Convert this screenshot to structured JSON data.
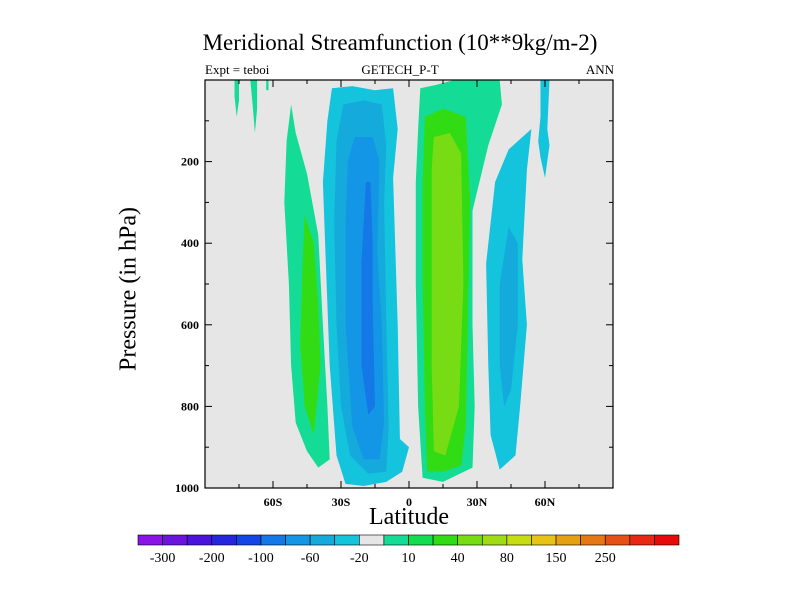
{
  "chart_data": {
    "type": "heatmap",
    "title": "Meridional Streamfunction (10**9kg/m-2)",
    "left_string": "Expt = teboi",
    "center_string": "GETECH_P-T",
    "right_string": "ANN",
    "xlabel": "Latitude",
    "ylabel": "Pressure (in hPa)",
    "xlim": [
      -90,
      90
    ],
    "ylim": [
      1000,
      0
    ],
    "x_ticks": [
      {
        "value": -60,
        "label": "60S"
      },
      {
        "value": -30,
        "label": "30S"
      },
      {
        "value": 0,
        "label": "0"
      },
      {
        "value": 30,
        "label": "30N"
      },
      {
        "value": 60,
        "label": "60N"
      }
    ],
    "y_ticks": [
      {
        "value": 200,
        "label": "200"
      },
      {
        "value": 400,
        "label": "400"
      },
      {
        "value": 600,
        "label": "600"
      },
      {
        "value": 800,
        "label": "800"
      },
      {
        "value": 1000,
        "label": "1000"
      }
    ],
    "background_color": "#e6e6e6",
    "colorbar": {
      "levels": [
        "-300",
        "-200",
        "-100",
        "-60",
        "-20",
        "10",
        "40",
        "80",
        "150",
        "250"
      ],
      "colors": [
        "#8a14e6",
        "#6a14dc",
        "#4a14dc",
        "#2626dc",
        "#1446e6",
        "#1478e6",
        "#1496e6",
        "#14aadc",
        "#14c3dc",
        "#e6e6e6",
        "#14dc96",
        "#14dc50",
        "#32dc14",
        "#78dc14",
        "#a0dc14",
        "#c8dc14",
        "#e6c314",
        "#e6a014",
        "#e67814",
        "#e65014",
        "#e62814",
        "#e60a0a"
      ]
    },
    "regions": [
      {
        "name": "sh-outer-cell",
        "value": 20,
        "color": "#14dc96",
        "points": [
          [
            -52,
            60
          ],
          [
            -50,
            130
          ],
          [
            -45,
            230
          ],
          [
            -40,
            380
          ],
          [
            -38,
            600
          ],
          [
            -36,
            800
          ],
          [
            -35,
            930
          ],
          [
            -40,
            950
          ],
          [
            -45,
            910
          ],
          [
            -50,
            840
          ],
          [
            -52,
            700
          ],
          [
            -53,
            500
          ],
          [
            -55,
            300
          ],
          [
            -54,
            150
          ]
        ]
      },
      {
        "name": "sh-outer-core",
        "value": 50,
        "color": "#32dc14",
        "points": [
          [
            -46,
            330
          ],
          [
            -42,
            400
          ],
          [
            -40,
            550
          ],
          [
            -39,
            700
          ],
          [
            -42,
            870
          ],
          [
            -46,
            800
          ],
          [
            -48,
            650
          ],
          [
            -47,
            450
          ]
        ]
      },
      {
        "name": "sh-hadley-outer",
        "value": -20,
        "color": "#14c3dc",
        "points": [
          [
            -34,
            20
          ],
          [
            -25,
            15
          ],
          [
            -15,
            25
          ],
          [
            -7,
            20
          ],
          [
            -5,
            120
          ],
          [
            -7,
            240
          ],
          [
            -5,
            600
          ],
          [
            -4,
            880
          ],
          [
            0,
            900
          ],
          [
            -3,
            960
          ],
          [
            -10,
            985
          ],
          [
            -20,
            995
          ],
          [
            -28,
            990
          ],
          [
            -32,
            920
          ],
          [
            -35,
            700
          ],
          [
            -37,
            400
          ],
          [
            -38,
            250
          ],
          [
            -36,
            100
          ]
        ]
      },
      {
        "name": "sh-hadley-mid",
        "value": -60,
        "color": "#14aadc",
        "points": [
          [
            -29,
            60
          ],
          [
            -20,
            50
          ],
          [
            -12,
            60
          ],
          [
            -10,
            160
          ],
          [
            -11,
            300
          ],
          [
            -10,
            600
          ],
          [
            -9,
            850
          ],
          [
            -10,
            960
          ],
          [
            -18,
            965
          ],
          [
            -26,
            920
          ],
          [
            -30,
            800
          ],
          [
            -32,
            600
          ],
          [
            -33,
            350
          ],
          [
            -32,
            150
          ]
        ]
      },
      {
        "name": "sh-hadley-inner",
        "value": -100,
        "color": "#1496e6",
        "points": [
          [
            -24,
            140
          ],
          [
            -16,
            140
          ],
          [
            -13,
            200
          ],
          [
            -14,
            420
          ],
          [
            -12,
            600
          ],
          [
            -11,
            840
          ],
          [
            -13,
            930
          ],
          [
            -20,
            930
          ],
          [
            -25,
            850
          ],
          [
            -28,
            600
          ],
          [
            -28,
            350
          ],
          [
            -27,
            200
          ]
        ]
      },
      {
        "name": "sh-hadley-core",
        "value": -150,
        "color": "#1478e6",
        "points": [
          [
            -19,
            250
          ],
          [
            -17,
            250
          ],
          [
            -16,
            400
          ],
          [
            -16,
            550
          ],
          [
            -15,
            800
          ],
          [
            -18,
            820
          ],
          [
            -21,
            700
          ],
          [
            -21,
            450
          ]
        ]
      },
      {
        "name": "nh-hadley-outer",
        "value": 20,
        "color": "#14dc96",
        "points": [
          [
            5,
            20
          ],
          [
            12,
            12
          ],
          [
            20,
            0
          ],
          [
            40,
            0
          ],
          [
            41,
            60
          ],
          [
            35,
            160
          ],
          [
            28,
            320
          ],
          [
            28,
            600
          ],
          [
            29,
            800
          ],
          [
            28,
            950
          ],
          [
            15,
            985
          ],
          [
            6,
            975
          ],
          [
            4,
            800
          ],
          [
            3,
            500
          ],
          [
            3,
            250
          ],
          [
            4,
            120
          ]
        ]
      },
      {
        "name": "nh-hadley-mid",
        "value": 50,
        "color": "#32dc14",
        "points": [
          [
            7,
            90
          ],
          [
            15,
            70
          ],
          [
            25,
            90
          ],
          [
            27,
            300
          ],
          [
            26,
            600
          ],
          [
            25,
            850
          ],
          [
            23,
            945
          ],
          [
            15,
            960
          ],
          [
            8,
            960
          ],
          [
            7,
            800
          ],
          [
            6,
            500
          ],
          [
            6,
            250
          ]
        ]
      },
      {
        "name": "nh-hadley-core",
        "value": 90,
        "color": "#78dc14",
        "points": [
          [
            11,
            140
          ],
          [
            18,
            130
          ],
          [
            23,
            180
          ],
          [
            24,
            500
          ],
          [
            22,
            800
          ],
          [
            16,
            920
          ],
          [
            11,
            910
          ],
          [
            10,
            700
          ],
          [
            10,
            400
          ],
          [
            10,
            220
          ]
        ]
      },
      {
        "name": "nh-outer-top-tongue",
        "value": -20,
        "color": "#14c3dc",
        "points": [
          [
            58,
            0
          ],
          [
            62,
            0
          ],
          [
            61,
            120
          ],
          [
            62,
            160
          ],
          [
            60,
            240
          ],
          [
            58,
            190
          ],
          [
            57,
            150
          ],
          [
            58,
            90
          ]
        ]
      },
      {
        "name": "nh-outer-cell",
        "value": -20,
        "color": "#14c3dc",
        "points": [
          [
            44,
            170
          ],
          [
            50,
            140
          ],
          [
            54,
            120
          ],
          [
            52,
            220
          ],
          [
            50,
            440
          ],
          [
            52,
            600
          ],
          [
            49,
            800
          ],
          [
            47,
            920
          ],
          [
            40,
            955
          ],
          [
            36,
            870
          ],
          [
            35,
            700
          ],
          [
            34,
            450
          ],
          [
            38,
            250
          ]
        ]
      },
      {
        "name": "nh-outer-core",
        "value": -40,
        "color": "#14aadc",
        "points": [
          [
            44,
            360
          ],
          [
            48,
            400
          ],
          [
            48,
            600
          ],
          [
            45,
            760
          ],
          [
            42,
            800
          ],
          [
            40,
            700
          ],
          [
            40,
            500
          ]
        ]
      },
      {
        "name": "polar-sh-tongue-1",
        "value": 20,
        "color": "#14dc96",
        "points": [
          [
            -77,
            0
          ],
          [
            -75,
            0
          ],
          [
            -75,
            50
          ],
          [
            -76,
            90
          ],
          [
            -77,
            40
          ]
        ]
      },
      {
        "name": "polar-sh-tongue-2",
        "value": 20,
        "color": "#14dc96",
        "points": [
          [
            -70,
            0
          ],
          [
            -67,
            0
          ],
          [
            -67,
            70
          ],
          [
            -68,
            130
          ],
          [
            -69,
            60
          ]
        ]
      },
      {
        "name": "polar-sh-tongue-3",
        "value": 20,
        "color": "#14dc96",
        "points": [
          [
            -63,
            0
          ],
          [
            -62,
            0
          ],
          [
            -62,
            25
          ],
          [
            -63,
            25
          ]
        ]
      }
    ]
  }
}
